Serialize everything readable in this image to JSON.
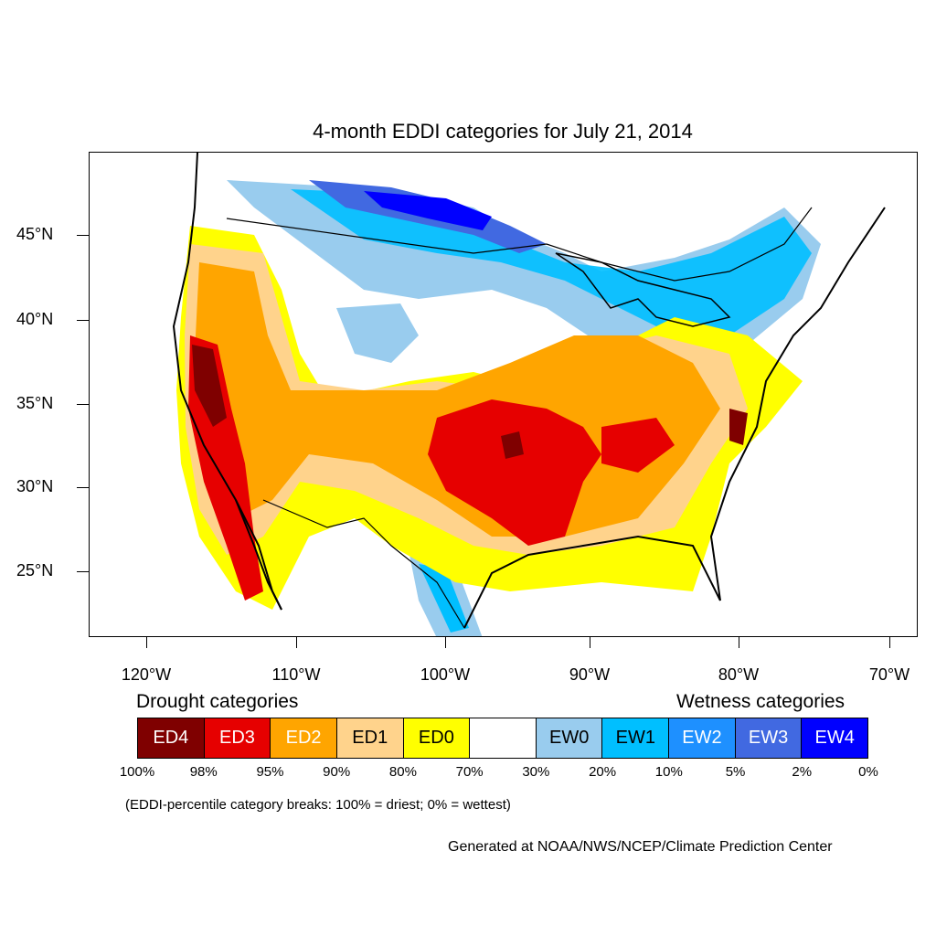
{
  "title": "4-month EDDI categories for July 21, 2014",
  "lat_labels": [
    "45°N",
    "40°N",
    "35°N",
    "30°N",
    "25°N"
  ],
  "lon_labels": [
    "120°W",
    "110°W",
    "100°W",
    "90°W",
    "80°W",
    "70°W"
  ],
  "legend": {
    "drought_heading": "Drought categories",
    "wetness_heading": "Wetness categories",
    "categories": [
      {
        "label": "ED4",
        "color": "#7f0000",
        "text_color": "#ffffff"
      },
      {
        "label": "ED3",
        "color": "#e60000",
        "text_color": "#ffffff"
      },
      {
        "label": "ED2",
        "color": "#ffa500",
        "text_color": "#ffffff"
      },
      {
        "label": "ED1",
        "color": "#ffd38c",
        "text_color": "#000000"
      },
      {
        "label": "ED0",
        "color": "#ffff00",
        "text_color": "#000000"
      },
      {
        "label": "",
        "color": "#ffffff",
        "text_color": "#000000"
      },
      {
        "label": "EW0",
        "color": "#99ccee",
        "text_color": "#000000"
      },
      {
        "label": "EW1",
        "color": "#00bfff",
        "text_color": "#000000"
      },
      {
        "label": "EW2",
        "color": "#1e90ff",
        "text_color": "#ffffff"
      },
      {
        "label": "EW3",
        "color": "#4169e1",
        "text_color": "#ffffff"
      },
      {
        "label": "EW4",
        "color": "#0000ff",
        "text_color": "#ffffff"
      }
    ],
    "percentiles": [
      "100%",
      "98%",
      "95%",
      "90%",
      "80%",
      "70%",
      "30%",
      "20%",
      "10%",
      "5%",
      "2%",
      "0%"
    ]
  },
  "note": "(EDDI-percentile category breaks: 100% = driest; 0% = wettest)",
  "credit": "Generated at NOAA/NWS/NCEP/Climate Prediction Center"
}
